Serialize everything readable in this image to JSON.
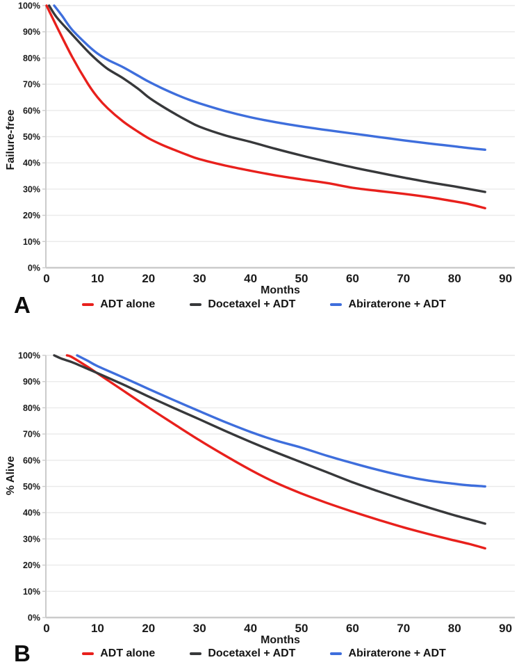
{
  "chart_data": [
    {
      "type": "line",
      "panel_label": "A",
      "xlabel": "Months",
      "ylabel": "Failure-free",
      "xlim": [
        0,
        90
      ],
      "ylim": [
        0,
        100
      ],
      "grid": true,
      "legend_position": "bottom",
      "xticks": [
        0,
        10,
        20,
        30,
        40,
        50,
        60,
        70,
        80,
        90
      ],
      "yticks": [
        "0%",
        "10%",
        "20%",
        "30%",
        "40%",
        "50%",
        "60%",
        "70%",
        "80%",
        "90%",
        "100%"
      ],
      "series": [
        {
          "name": "ADT alone",
          "color": "#e8201c",
          "points": [
            [
              0,
              100
            ],
            [
              2,
              92
            ],
            [
              5,
              80.5
            ],
            [
              8,
              70.5
            ],
            [
              10,
              65
            ],
            [
              12,
              60.8
            ],
            [
              15,
              55.8
            ],
            [
              18,
              51.8
            ],
            [
              20,
              49.4
            ],
            [
              22.5,
              47
            ],
            [
              25,
              45
            ],
            [
              27.5,
              43.1
            ],
            [
              30,
              41.4
            ],
            [
              35,
              39
            ],
            [
              40,
              37
            ],
            [
              45,
              35.2
            ],
            [
              50,
              33.7
            ],
            [
              55,
              32.3
            ],
            [
              60,
              30.5
            ],
            [
              65,
              29.3
            ],
            [
              70,
              28.2
            ],
            [
              75,
              26.9
            ],
            [
              80,
              25.3
            ],
            [
              83,
              24.2
            ],
            [
              86,
              22.7
            ]
          ]
        },
        {
          "name": "Docetaxel + ADT",
          "color": "#37383a",
          "points": [
            [
              0.5,
              100
            ],
            [
              2,
              95.5
            ],
            [
              5,
              89
            ],
            [
              8,
              82.7
            ],
            [
              10,
              79
            ],
            [
              12,
              75.8
            ],
            [
              15,
              72.3
            ],
            [
              18,
              68.2
            ],
            [
              20,
              65
            ],
            [
              22.5,
              61.8
            ],
            [
              25,
              58.9
            ],
            [
              27.5,
              56.2
            ],
            [
              30,
              53.8
            ],
            [
              35,
              50.5
            ],
            [
              40,
              48
            ],
            [
              45,
              45.3
            ],
            [
              50,
              42.8
            ],
            [
              55,
              40.5
            ],
            [
              60,
              38.3
            ],
            [
              65,
              36.3
            ],
            [
              70,
              34.4
            ],
            [
              75,
              32.6
            ],
            [
              80,
              31
            ],
            [
              86,
              28.9
            ]
          ]
        },
        {
          "name": "Abiraterone + ADT",
          "color": "#3e6edc",
          "points": [
            [
              1.5,
              100
            ],
            [
              3,
              96.2
            ],
            [
              5,
              90.8
            ],
            [
              8,
              85
            ],
            [
              10,
              81.7
            ],
            [
              12,
              79.3
            ],
            [
              15,
              76.5
            ],
            [
              18,
              73.2
            ],
            [
              20,
              71
            ],
            [
              22.5,
              68.6
            ],
            [
              25,
              66.4
            ],
            [
              27.5,
              64.4
            ],
            [
              30,
              62.7
            ],
            [
              35,
              59.8
            ],
            [
              40,
              57.4
            ],
            [
              45,
              55.5
            ],
            [
              50,
              53.9
            ],
            [
              55,
              52.5
            ],
            [
              60,
              51.2
            ],
            [
              65,
              49.9
            ],
            [
              70,
              48.6
            ],
            [
              75,
              47.4
            ],
            [
              80,
              46.3
            ],
            [
              83,
              45.6
            ],
            [
              86,
              45
            ]
          ]
        }
      ]
    },
    {
      "type": "line",
      "panel_label": "B",
      "xlabel": "Months",
      "ylabel": "% Alive",
      "xlim": [
        0,
        90
      ],
      "ylim": [
        0,
        100
      ],
      "grid": true,
      "legend_position": "bottom",
      "xticks": [
        0,
        10,
        20,
        30,
        40,
        50,
        60,
        70,
        80,
        90
      ],
      "yticks": [
        "0%",
        "10%",
        "20%",
        "30%",
        "40%",
        "50%",
        "60%",
        "70%",
        "80%",
        "90%",
        "100%"
      ],
      "series": [
        {
          "name": "ADT alone",
          "color": "#e8201c",
          "points": [
            [
              4,
              100
            ],
            [
              5,
              99.3
            ],
            [
              8,
              95.7
            ],
            [
              10,
              93.1
            ],
            [
              15,
              86.6
            ],
            [
              20,
              80.1
            ],
            [
              25,
              73.8
            ],
            [
              30,
              67.6
            ],
            [
              35,
              61.8
            ],
            [
              40,
              56.3
            ],
            [
              45,
              51.4
            ],
            [
              50,
              47.3
            ],
            [
              55,
              43.7
            ],
            [
              60,
              40.4
            ],
            [
              65,
              37.3
            ],
            [
              70,
              34.4
            ],
            [
              75,
              31.8
            ],
            [
              80,
              29.4
            ],
            [
              83,
              28
            ],
            [
              86,
              26.4
            ]
          ]
        },
        {
          "name": "Docetaxel + ADT",
          "color": "#37383a",
          "points": [
            [
              1.5,
              100
            ],
            [
              3,
              98.7
            ],
            [
              5,
              97.4
            ],
            [
              8,
              94.9
            ],
            [
              10,
              93.2
            ],
            [
              15,
              88.9
            ],
            [
              20,
              84.3
            ],
            [
              25,
              79.9
            ],
            [
              30,
              75.6
            ],
            [
              35,
              71.2
            ],
            [
              40,
              67
            ],
            [
              45,
              63
            ],
            [
              50,
              59.2
            ],
            [
              55,
              55.4
            ],
            [
              60,
              51.6
            ],
            [
              65,
              48.2
            ],
            [
              70,
              45
            ],
            [
              75,
              41.9
            ],
            [
              80,
              39
            ],
            [
              83,
              37.4
            ],
            [
              86,
              35.8
            ]
          ]
        },
        {
          "name": "Abiraterone + ADT",
          "color": "#3e6edc",
          "points": [
            [
              6,
              100
            ],
            [
              8,
              98
            ],
            [
              10,
              95.9
            ],
            [
              15,
              91.6
            ],
            [
              20,
              87.2
            ],
            [
              25,
              82.9
            ],
            [
              30,
              78.7
            ],
            [
              35,
              74.6
            ],
            [
              40,
              70.8
            ],
            [
              45,
              67.5
            ],
            [
              50,
              64.8
            ],
            [
              55,
              61.7
            ],
            [
              60,
              58.9
            ],
            [
              65,
              56.3
            ],
            [
              70,
              54
            ],
            [
              75,
              52.2
            ],
            [
              80,
              51
            ],
            [
              83,
              50.4
            ],
            [
              86,
              50
            ]
          ]
        }
      ]
    }
  ]
}
